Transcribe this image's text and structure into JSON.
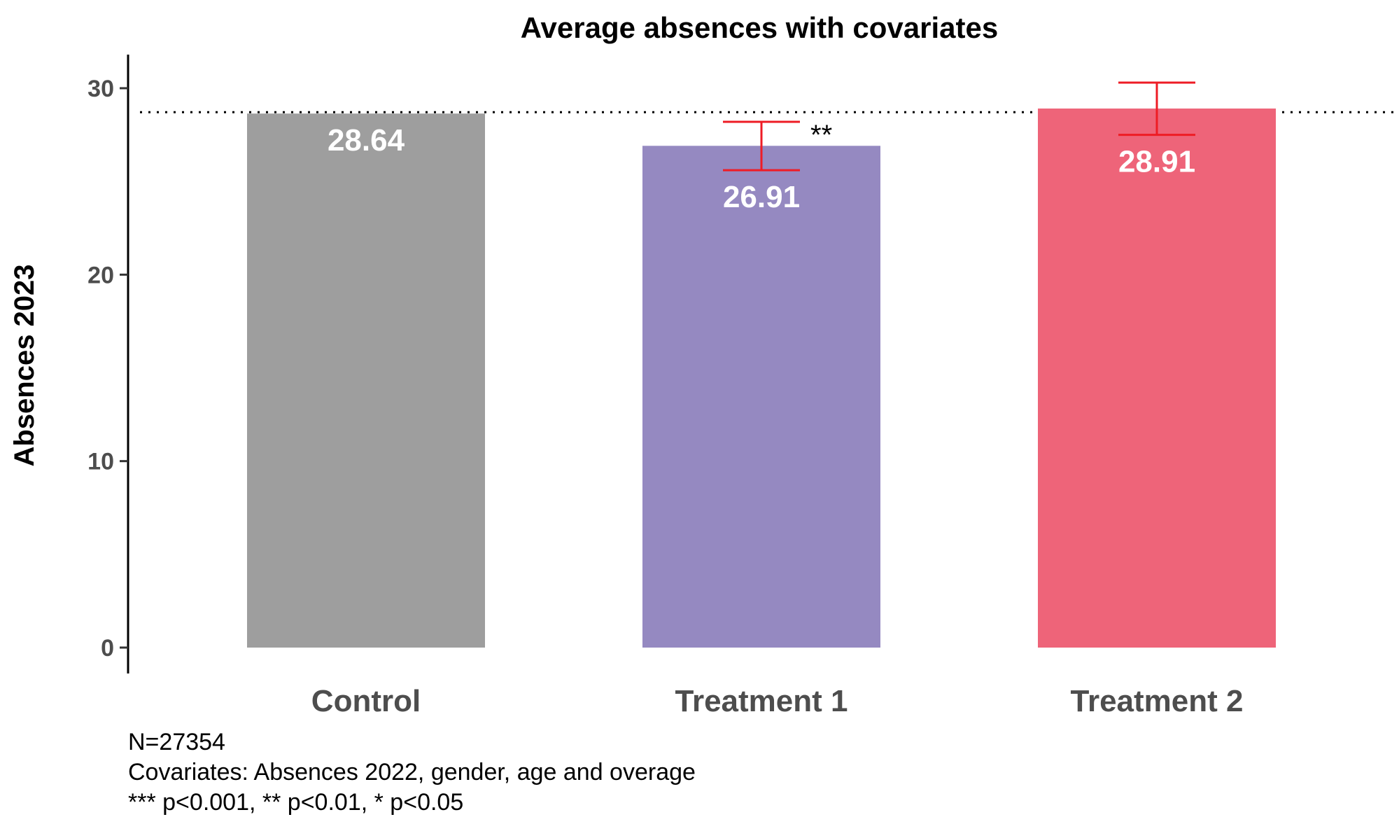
{
  "chart_data": {
    "type": "bar",
    "title": "Average absences with covariates",
    "xlabel": "",
    "ylabel": "Absences 2023",
    "ylim": [
      0,
      32
    ],
    "yticks": [
      0,
      10,
      20,
      30
    ],
    "categories": [
      "Control",
      "Treatment 1",
      "Treatment 2"
    ],
    "values": [
      28.64,
      26.91,
      28.91
    ],
    "value_labels": [
      "28.64",
      "26.91",
      "28.91"
    ],
    "colors": [
      "#9e9e9e",
      "#9589c1",
      "#ee6479"
    ],
    "error_bars": [
      null,
      [
        25.6,
        28.2
      ],
      [
        27.5,
        30.3
      ]
    ],
    "error_bar_color": "#ee1c25",
    "significance": [
      "",
      "**",
      ""
    ],
    "reference_line": {
      "value": 28.64,
      "style": "dotted"
    },
    "grid": false,
    "notes": [
      "N=27354",
      "Covariates: Absences 2022, gender, age and overage",
      "*** p<0.001, ** p<0.01, * p<0.05"
    ]
  }
}
